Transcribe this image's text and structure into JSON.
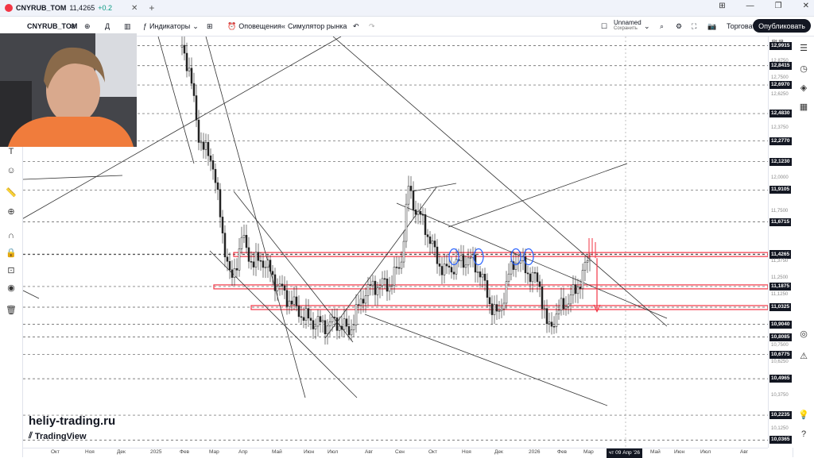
{
  "tab": {
    "symbol": "CNYRUB_TOM",
    "price": "11,4265",
    "change": "+0.2"
  },
  "toolbar": {
    "symbol": "CNYRUB_TOM",
    "interval": "Д",
    "indicators": "Индикаторы",
    "alerts": "Оповещения",
    "replay": "Симулятор рынка",
    "layout_name": "Unnamed",
    "layout_status": "Сохранить",
    "trade": "Торговать",
    "publish": "Опубликовать"
  },
  "price_scale": {
    "currency": "RUB",
    "labels": [
      {
        "value": "12,9915",
        "y": 12.9915,
        "style": "dark"
      },
      {
        "value": "12,8415",
        "y": 12.8415,
        "style": "dark"
      },
      {
        "value": "12,6970",
        "y": 12.697,
        "style": "dark"
      },
      {
        "value": "12,4830",
        "y": 12.483,
        "style": "dark"
      },
      {
        "value": "12,2770",
        "y": 12.277,
        "style": "dark"
      },
      {
        "value": "12,1230",
        "y": 12.123,
        "style": "dark"
      },
      {
        "value": "11,9105",
        "y": 11.9105,
        "style": "dark"
      },
      {
        "value": "11,6715",
        "y": 11.6715,
        "style": "dark"
      },
      {
        "value": "11,4300",
        "y": 11.43,
        "style": "dark"
      },
      {
        "value": "11,4265",
        "y": 11.4265,
        "style": "dark"
      },
      {
        "value": "11,1875",
        "y": 11.1875,
        "style": "dark"
      },
      {
        "value": "11,0325",
        "y": 11.0325,
        "style": "dark"
      },
      {
        "value": "10,9040",
        "y": 10.904,
        "style": "dark"
      },
      {
        "value": "10,8085",
        "y": 10.8085,
        "style": "dark"
      },
      {
        "value": "10,6775",
        "y": 10.6775,
        "style": "dark"
      },
      {
        "value": "10,4965",
        "y": 10.4965,
        "style": "dark"
      },
      {
        "value": "10,2235",
        "y": 10.2235,
        "style": "dark"
      },
      {
        "value": "10,0365",
        "y": 10.0365,
        "style": "dark"
      }
    ],
    "ticks": [
      "12,8750",
      "12,7500",
      "12,6250",
      "12,3750",
      "12,0000",
      "11,7500",
      "11,3750",
      "11,2500",
      "11,1250",
      "10,7500",
      "10,6250",
      "10,3750",
      "10,1250"
    ]
  },
  "time_scale": {
    "labels": [
      "Окт",
      "Ноя",
      "Дек",
      "2025",
      "Фев",
      "Мар",
      "Апр",
      "Май",
      "Июн",
      "Июл",
      "Авг",
      "Сен",
      "Окт",
      "Ноя",
      "Дек",
      "2026",
      "Фев",
      "Мар",
      "Май",
      "Июн",
      "Июл",
      "Авг"
    ],
    "cursor_date": "чт 09 Апр '26"
  },
  "watermark": "heliy-trading.ru",
  "tv_logo": "TradingView",
  "colors": {
    "accent_red": "#f23645",
    "dark": "#131722",
    "grid": "#d1d4dc"
  }
}
